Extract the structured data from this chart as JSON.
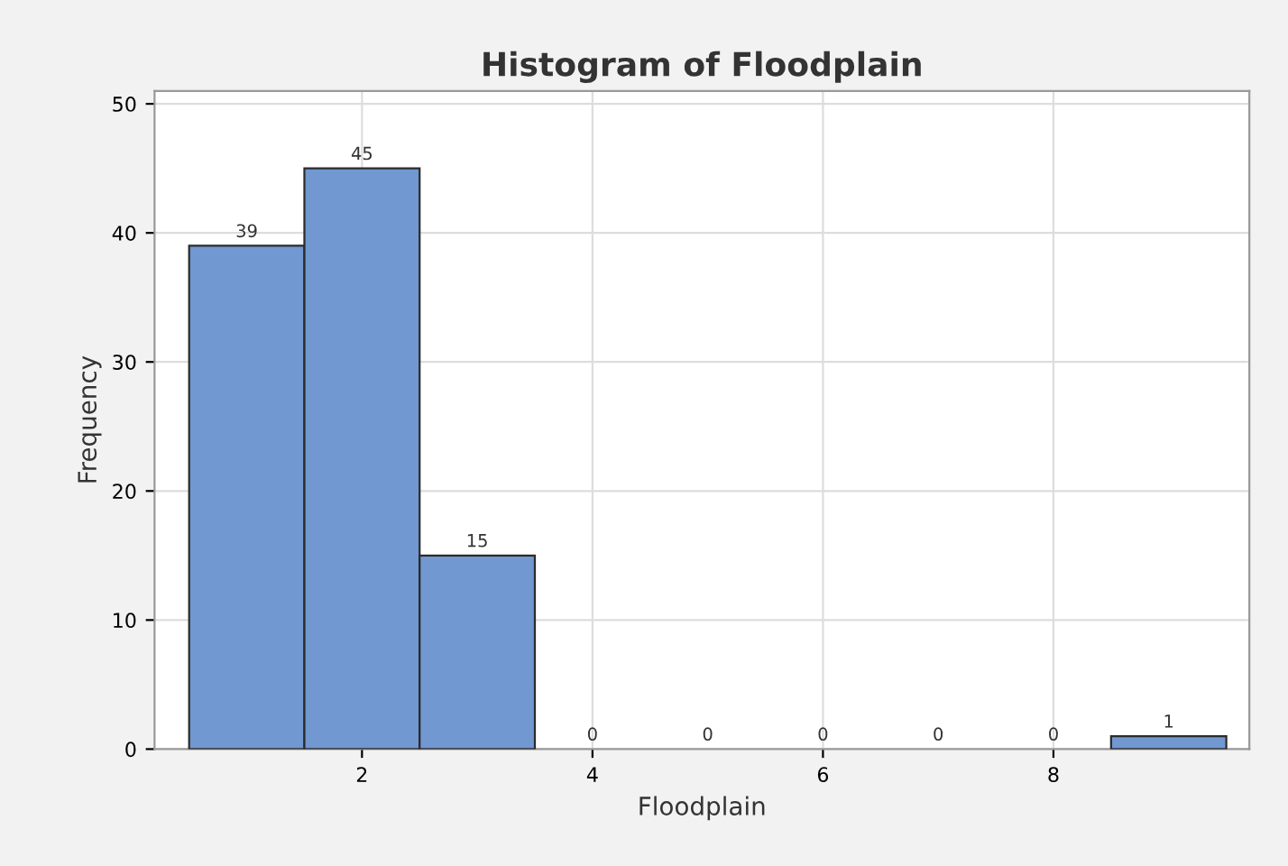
{
  "chart_data": {
    "type": "histogram",
    "title": "Histogram of Floodplain",
    "xlabel": "Floodplain",
    "ylabel": "Frequency",
    "bins": [
      0.5,
      1.5,
      2.5,
      3.5,
      4.5,
      5.5,
      6.5,
      7.5,
      8.5,
      9.5
    ],
    "values": [
      39,
      45,
      15,
      0,
      0,
      0,
      0,
      0,
      1
    ],
    "color": "#7198d0",
    "data_labels": true,
    "xlim": [
      0.2,
      9.7
    ],
    "xticks": [
      2,
      4,
      6,
      8
    ],
    "ylim": [
      0,
      51
    ],
    "yticks": [
      0,
      10,
      20,
      30,
      40,
      50
    ],
    "grid": true
  }
}
